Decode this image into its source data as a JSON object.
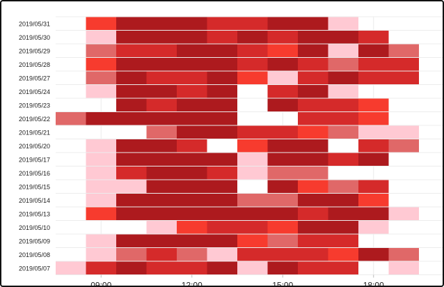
{
  "chart_data": {
    "type": "heatmap",
    "title": "",
    "xlabel": "",
    "ylabel": "",
    "x_ticks": [
      "09:00",
      "12:00",
      "15:00",
      "18:00"
    ],
    "x_tick_hours": [
      9,
      12,
      15,
      18
    ],
    "column_start_hours": [
      7.5,
      8.5,
      9.5,
      10.5,
      11.5,
      12.5,
      13.5,
      14.5,
      15.5,
      16.5,
      17.5,
      18.5,
      19.5
    ],
    "levels": [
      "empty",
      "very light",
      "light",
      "bright",
      "medium",
      "dark"
    ],
    "colors": [
      "#ffffff",
      "#ffc9d3",
      "#e06868",
      "#f73b2e",
      "#d52a2a",
      "#ad1a1e"
    ],
    "rows": [
      {
        "date": "2019/05/31",
        "cells": [
          0,
          3,
          5,
          5,
          5,
          4,
          4,
          5,
          5,
          1,
          0,
          0,
          0
        ]
      },
      {
        "date": "2019/05/30",
        "cells": [
          0,
          1,
          5,
          5,
          5,
          4,
          5,
          4,
          5,
          5,
          4,
          0,
          0
        ]
      },
      {
        "date": "2019/05/29",
        "cells": [
          0,
          2,
          4,
          4,
          5,
          5,
          4,
          3,
          5,
          1,
          5,
          2,
          0
        ]
      },
      {
        "date": "2019/05/28",
        "cells": [
          0,
          3,
          5,
          5,
          5,
          5,
          4,
          5,
          4,
          2,
          4,
          4,
          0
        ]
      },
      {
        "date": "2019/05/27",
        "cells": [
          0,
          2,
          5,
          4,
          4,
          5,
          3,
          1,
          4,
          5,
          4,
          4,
          0
        ]
      },
      {
        "date": "2019/05/24",
        "cells": [
          0,
          1,
          5,
          5,
          4,
          5,
          0,
          4,
          5,
          1,
          0,
          0,
          0
        ]
      },
      {
        "date": "2019/05/23",
        "cells": [
          0,
          0,
          5,
          4,
          5,
          5,
          0,
          5,
          4,
          4,
          3,
          0,
          0
        ]
      },
      {
        "date": "2019/05/22",
        "cells": [
          2,
          5,
          5,
          5,
          5,
          5,
          0,
          0,
          4,
          4,
          3,
          0,
          0
        ]
      },
      {
        "date": "2019/05/21",
        "cells": [
          0,
          0,
          0,
          2,
          5,
          5,
          4,
          4,
          3,
          2,
          1,
          1,
          0
        ]
      },
      {
        "date": "2019/05/20",
        "cells": [
          0,
          1,
          5,
          5,
          4,
          0,
          3,
          5,
          5,
          0,
          4,
          2,
          0
        ]
      },
      {
        "date": "2019/05/17",
        "cells": [
          0,
          1,
          5,
          5,
          5,
          5,
          1,
          5,
          5,
          4,
          5,
          0,
          0
        ]
      },
      {
        "date": "2019/05/16",
        "cells": [
          0,
          1,
          4,
          5,
          5,
          4,
          1,
          2,
          2,
          0,
          0,
          0,
          0
        ]
      },
      {
        "date": "2019/05/15",
        "cells": [
          0,
          1,
          1,
          5,
          5,
          5,
          0,
          5,
          3,
          2,
          4,
          0,
          0
        ]
      },
      {
        "date": "2019/05/14",
        "cells": [
          0,
          1,
          5,
          5,
          5,
          5,
          2,
          2,
          5,
          5,
          3,
          0,
          0
        ]
      },
      {
        "date": "2019/05/13",
        "cells": [
          0,
          3,
          5,
          5,
          5,
          5,
          5,
          5,
          4,
          5,
          5,
          1,
          0
        ]
      },
      {
        "date": "2019/05/10",
        "cells": [
          0,
          0,
          0,
          1,
          3,
          4,
          4,
          3,
          5,
          5,
          1,
          0,
          0
        ]
      },
      {
        "date": "2019/05/09",
        "cells": [
          0,
          1,
          5,
          5,
          5,
          5,
          3,
          2,
          4,
          4,
          0,
          0,
          0
        ]
      },
      {
        "date": "2019/05/08",
        "cells": [
          0,
          1,
          2,
          4,
          2,
          1,
          4,
          4,
          4,
          3,
          5,
          2,
          0
        ]
      },
      {
        "date": "2019/05/07",
        "cells": [
          1,
          4,
          5,
          4,
          4,
          5,
          1,
          5,
          4,
          4,
          0,
          1,
          0
        ]
      }
    ]
  }
}
